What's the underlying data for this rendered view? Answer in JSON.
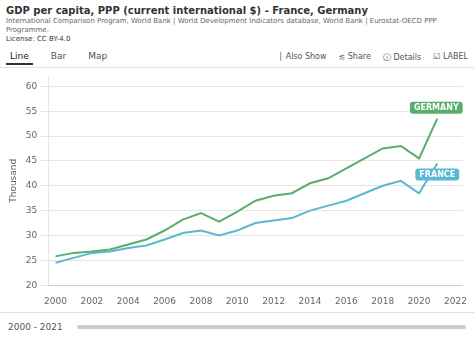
{
  "chart_data": {
    "type": "line",
    "title": "GDP per capita, PPP (current international $) - France, Germany",
    "subtitle": [
      "International Comparison Program, World Bank | World Development Indicators database, World Bank | Eurostat-OECD PPP",
      "Programme."
    ],
    "license": "License: CC BY-4.0",
    "tabs": [
      "Line",
      "Bar",
      "Map"
    ],
    "buttons": [
      "│ Also Show",
      "≲ Share",
      "ⓘ Details",
      "☑ LABEL"
    ],
    "range_text": "2000 - 2021",
    "y_label": "Thousand",
    "x": [
      2000,
      2001,
      2002,
      2003,
      2004,
      2005,
      2006,
      2007,
      2008,
      2009,
      2010,
      2011,
      2012,
      2013,
      2014,
      2015,
      2016,
      2017,
      2018,
      2019,
      2020,
      2021
    ],
    "series": [
      {
        "name": "GERMANY",
        "color": "#5aad6f",
        "values": [
          25.8,
          26.5,
          26.8,
          27.2,
          28.2,
          29.2,
          31.0,
          33.2,
          34.5,
          32.8,
          34.8,
          37.0,
          38.0,
          38.5,
          40.5,
          41.5,
          43.5,
          45.5,
          47.5,
          48.0,
          45.5,
          53.5
        ]
      },
      {
        "name": "FRANCE",
        "color": "#5ab8d4",
        "values": [
          24.5,
          25.5,
          26.5,
          26.8,
          27.5,
          28.0,
          29.2,
          30.5,
          31.0,
          30.0,
          31.0,
          32.5,
          33.0,
          33.5,
          35.0,
          36.0,
          37.0,
          38.5,
          40.0,
          41.0,
          38.5,
          44.5
        ]
      }
    ],
    "xlim": [
      1999.6,
      2022.4
    ],
    "xticks": [
      2000,
      2002,
      2004,
      2006,
      2008,
      2010,
      2012,
      2014,
      2016,
      2018,
      2020,
      2022
    ],
    "ylim": [
      20,
      62
    ],
    "yticks": [
      20,
      25,
      30,
      35,
      40,
      45,
      50,
      55,
      60
    ],
    "grid": "y"
  }
}
